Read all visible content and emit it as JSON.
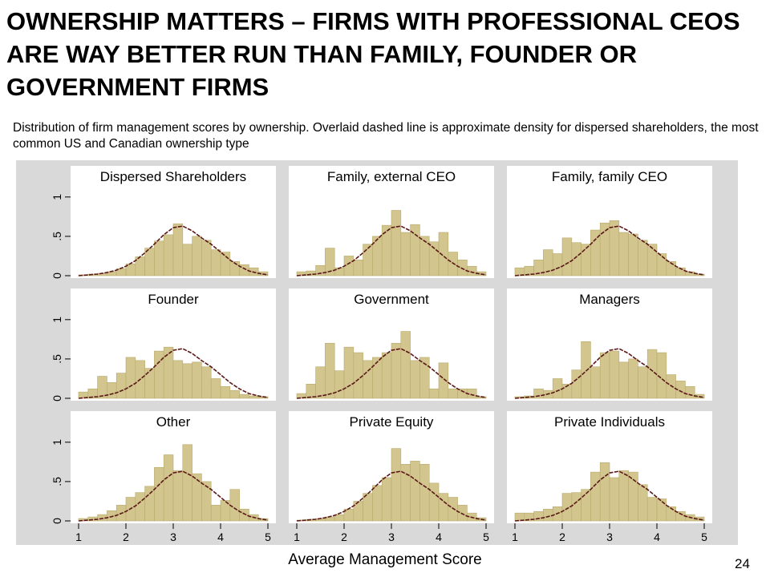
{
  "slide": {
    "title": "OWNERSHIP MATTERS – FIRMS WITH PROFESSIONAL CEOS ARE WAY BETTER RUN THAN FAMILY, FOUNDER OR GOVERNMENT FIRMS",
    "subtitle": "Distribution of firm management scores by ownership. Overlaid dashed line is approximate density for dispersed shareholders, the most common US and Canadian ownership type",
    "x_axis_label": "Average Management Score",
    "page_number": "24"
  },
  "colors": {
    "bar_fill": "#d2c68e",
    "bar_stroke": "#b8a96a",
    "density_line": "#5a1818",
    "panel_bg": "#ffffff",
    "outer_bg": "#d9d9d9"
  },
  "chart_data": {
    "type": "bar",
    "layout": "3x3 small multiples with shared axes",
    "xlabel": "Average Management Score",
    "xlim": [
      1,
      5
    ],
    "x_ticks": [
      "1",
      "2",
      "3",
      "4",
      "5"
    ],
    "ylim": [
      0,
      1.1
    ],
    "y_ticks": [
      "0",
      ".5",
      "1"
    ],
    "bins": [
      1.1,
      1.3,
      1.5,
      1.7,
      1.9,
      2.1,
      2.3,
      2.5,
      2.7,
      2.9,
      3.1,
      3.3,
      3.5,
      3.7,
      3.9,
      4.1,
      4.3,
      4.5,
      4.7,
      4.9
    ],
    "density_overlay": {
      "style": "dashed",
      "x": [
        1.0,
        1.2,
        1.4,
        1.6,
        1.8,
        2.0,
        2.2,
        2.4,
        2.6,
        2.8,
        3.0,
        3.2,
        3.4,
        3.6,
        3.8,
        4.0,
        4.2,
        4.4,
        4.6,
        4.8,
        5.0
      ],
      "y": [
        0.0,
        0.01,
        0.02,
        0.04,
        0.07,
        0.12,
        0.19,
        0.29,
        0.4,
        0.52,
        0.61,
        0.63,
        0.57,
        0.48,
        0.4,
        0.3,
        0.2,
        0.12,
        0.06,
        0.03,
        0.01
      ]
    },
    "panels": [
      {
        "name": "Dispersed Shareholders",
        "values": [
          0.01,
          0.02,
          0.03,
          0.05,
          0.09,
          0.15,
          0.24,
          0.35,
          0.44,
          0.52,
          0.66,
          0.4,
          0.5,
          0.45,
          0.33,
          0.3,
          0.18,
          0.14,
          0.1,
          0.05
        ]
      },
      {
        "name": "Family, external CEO",
        "values": [
          0.05,
          0.06,
          0.13,
          0.35,
          0.1,
          0.25,
          0.2,
          0.4,
          0.5,
          0.64,
          0.83,
          0.55,
          0.65,
          0.5,
          0.43,
          0.55,
          0.3,
          0.2,
          0.12,
          0.05
        ]
      },
      {
        "name": "Family, family CEO",
        "values": [
          0.1,
          0.12,
          0.2,
          0.33,
          0.28,
          0.48,
          0.42,
          0.4,
          0.58,
          0.67,
          0.7,
          0.55,
          0.53,
          0.45,
          0.4,
          0.28,
          0.18,
          0.1,
          0.05,
          0.02
        ]
      },
      {
        "name": "Founder",
        "values": [
          0.08,
          0.12,
          0.28,
          0.2,
          0.32,
          0.52,
          0.48,
          0.38,
          0.6,
          0.65,
          0.48,
          0.44,
          0.46,
          0.4,
          0.25,
          0.15,
          0.1,
          0.05,
          0.03,
          0.02
        ]
      },
      {
        "name": "Government",
        "values": [
          0.06,
          0.18,
          0.4,
          0.7,
          0.35,
          0.65,
          0.58,
          0.48,
          0.52,
          0.58,
          0.7,
          0.85,
          0.48,
          0.52,
          0.12,
          0.45,
          0.12,
          0.12,
          0.12,
          0.02
        ]
      },
      {
        "name": "Managers",
        "values": [
          0.02,
          0.03,
          0.12,
          0.1,
          0.25,
          0.18,
          0.36,
          0.72,
          0.4,
          0.58,
          0.6,
          0.46,
          0.5,
          0.4,
          0.62,
          0.58,
          0.3,
          0.22,
          0.15,
          0.05
        ]
      },
      {
        "name": "Other",
        "values": [
          0.03,
          0.05,
          0.08,
          0.13,
          0.2,
          0.3,
          0.36,
          0.44,
          0.68,
          0.84,
          0.64,
          0.97,
          0.6,
          0.5,
          0.2,
          0.26,
          0.4,
          0.15,
          0.08,
          0.03
        ]
      },
      {
        "name": "Private Equity",
        "values": [
          0.01,
          0.02,
          0.03,
          0.05,
          0.08,
          0.15,
          0.25,
          0.35,
          0.45,
          0.55,
          0.92,
          0.72,
          0.76,
          0.72,
          0.48,
          0.35,
          0.3,
          0.2,
          0.1,
          0.04
        ]
      },
      {
        "name": "Private Individuals",
        "values": [
          0.1,
          0.1,
          0.12,
          0.15,
          0.18,
          0.35,
          0.36,
          0.4,
          0.62,
          0.74,
          0.55,
          0.64,
          0.62,
          0.46,
          0.3,
          0.28,
          0.18,
          0.12,
          0.08,
          0.05
        ]
      }
    ]
  }
}
